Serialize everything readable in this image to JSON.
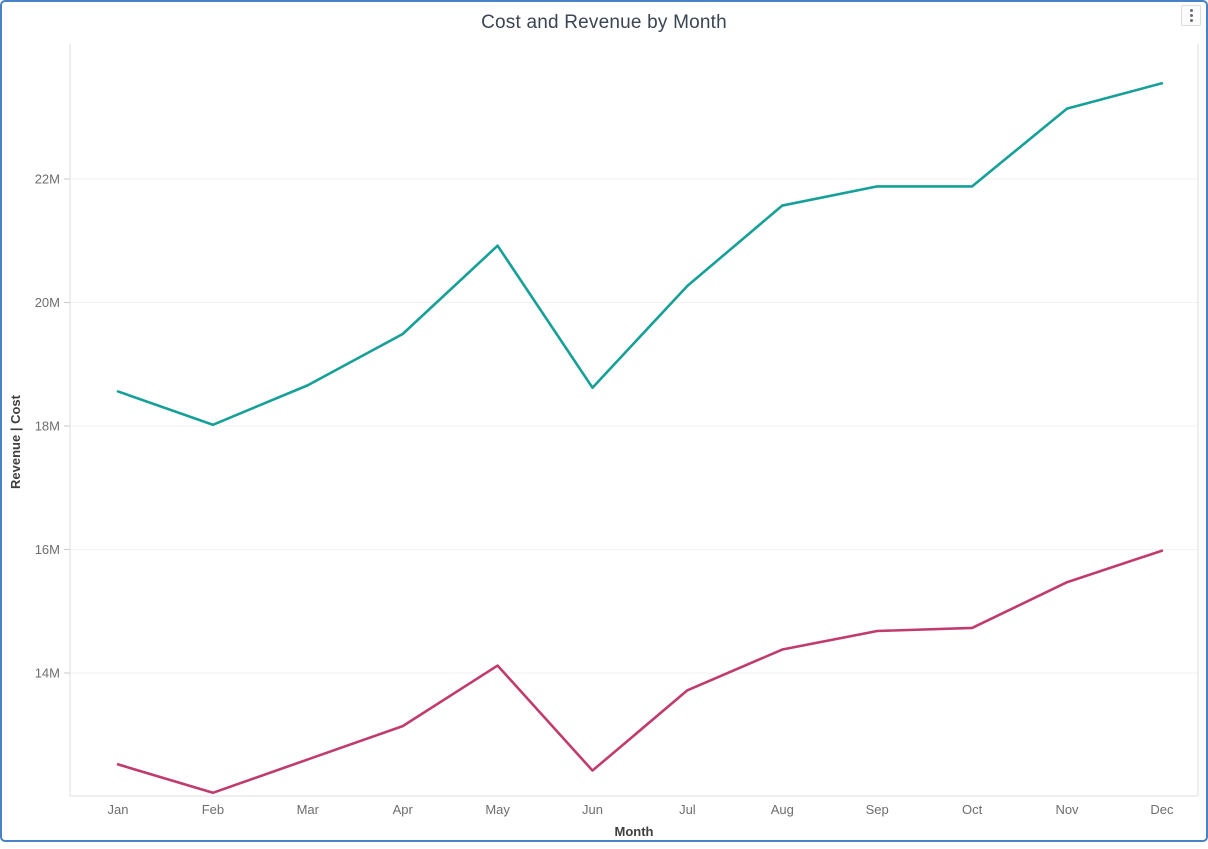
{
  "card": {
    "title": "Cost and Revenue by Month",
    "menu_icon": "kebab-vertical"
  },
  "colors": {
    "card_border": "#4783C4",
    "revenue_line": "#16A098",
    "cost_line": "#C03C6E",
    "gridline": "#F2F2F2",
    "axis_frame": "#DCDCDC",
    "tick_mark": "#C9C9C9",
    "axis_text": "#6E6E6E",
    "axis_title_text": "#3F3F3F",
    "title_text": "#3A4553"
  },
  "chart_data": {
    "type": "line",
    "title": "Cost and Revenue by Month",
    "xlabel": "Month",
    "ylabel": "Revenue | Cost",
    "categories": [
      "Jan",
      "Feb",
      "Mar",
      "Apr",
      "May",
      "Jun",
      "Jul",
      "Aug",
      "Sep",
      "Oct",
      "Nov",
      "Dec"
    ],
    "series": [
      {
        "name": "Revenue",
        "color": "#16A098",
        "values": [
          18.56,
          18.02,
          18.66,
          19.49,
          20.92,
          18.62,
          20.27,
          21.57,
          21.88,
          21.88,
          23.14,
          23.55
        ]
      },
      {
        "name": "Cost",
        "color": "#C03C6E",
        "values": [
          12.52,
          12.06,
          12.6,
          13.14,
          14.12,
          12.42,
          13.72,
          14.38,
          14.68,
          14.73,
          15.47,
          15.98
        ]
      }
    ],
    "unit": "M",
    "y_ticks": [
      {
        "label": "14M",
        "value": 14
      },
      {
        "label": "16M",
        "value": 16
      },
      {
        "label": "18M",
        "value": 18
      },
      {
        "label": "20M",
        "value": 20
      },
      {
        "label": "22M",
        "value": 22
      }
    ],
    "ylim": [
      12,
      24.2
    ],
    "grid": true,
    "legend": "none"
  }
}
